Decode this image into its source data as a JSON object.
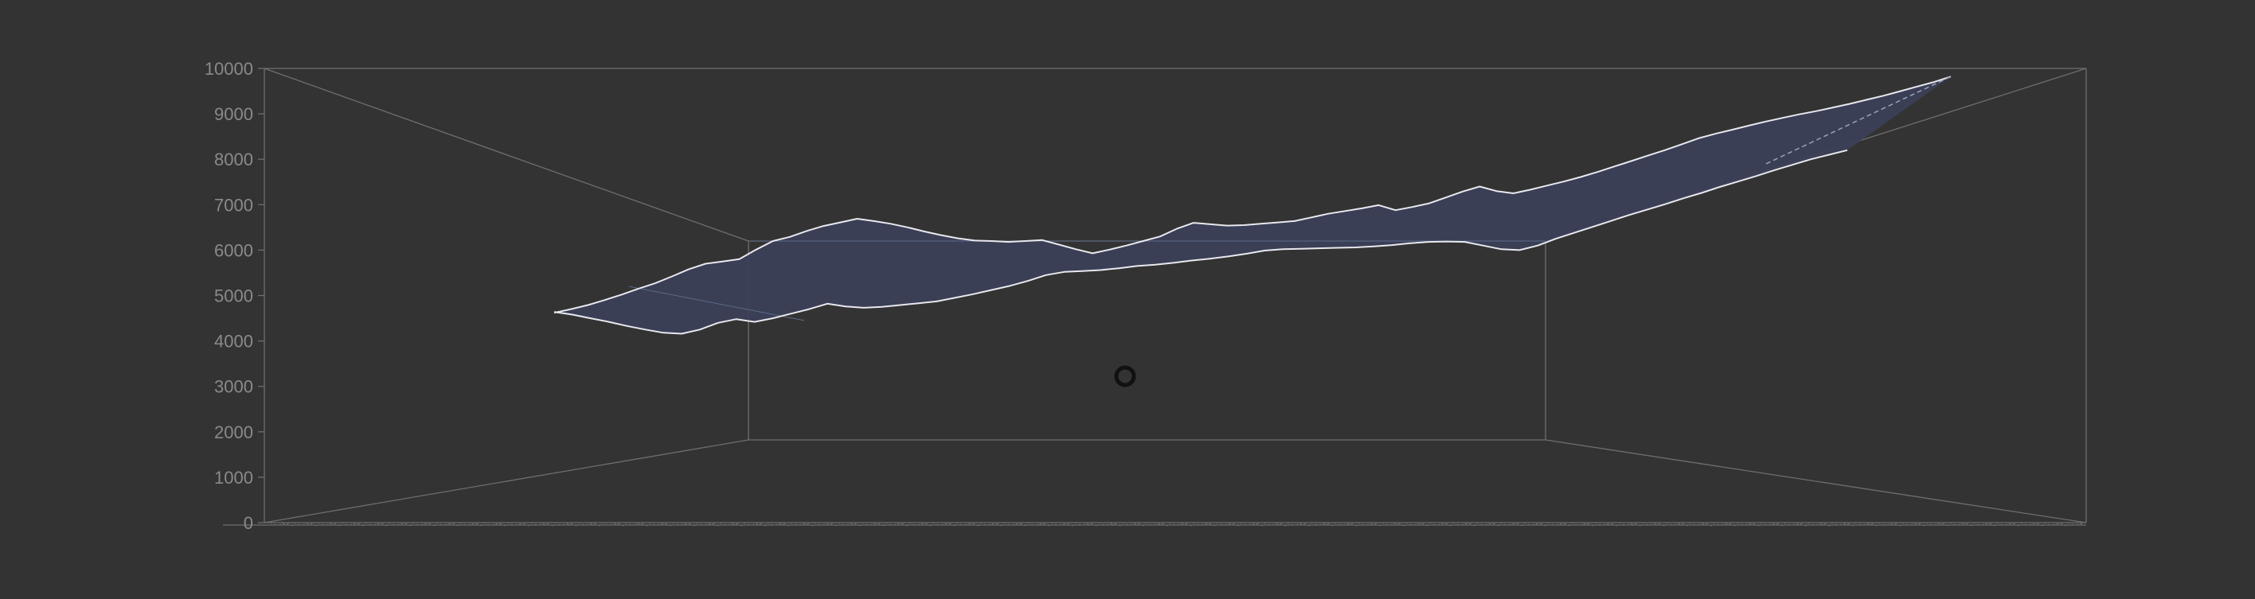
{
  "chart_data": {
    "type": "area",
    "title": "",
    "xlabel": "",
    "ylabel": "",
    "ylim": [
      0,
      10000
    ],
    "y_ticks": [
      0,
      1000,
      2000,
      3000,
      4000,
      5000,
      6000,
      7000,
      8000,
      9000,
      10000
    ],
    "grid": false,
    "legend": "none",
    "surface_color": "#3b4058",
    "edge_color": "#e8e8ee",
    "series": [
      {
        "values": [
          4620,
          4700,
          4790,
          4900,
          5020,
          5150,
          5270,
          5420,
          5580,
          5700,
          5750,
          5800,
          6010,
          6200,
          6290,
          6420,
          6530,
          6610,
          6690,
          6640,
          6580,
          6500,
          6410,
          6330,
          6260,
          6210,
          6200,
          6180,
          6200,
          6220,
          6120,
          6020,
          5930,
          6010,
          6100,
          6200,
          6300,
          6470,
          6600,
          6570,
          6540,
          6550,
          6580,
          6610,
          6640,
          6720,
          6800,
          6860,
          6920,
          6990,
          6880,
          6950,
          7030,
          7160,
          7290,
          7400,
          7300,
          7250,
          7330,
          7420,
          7510,
          7610,
          7720,
          7840,
          7960,
          8080,
          8200,
          8330,
          8460,
          8560,
          8650,
          8740,
          8830,
          8910,
          8990,
          9060,
          9140,
          9220,
          9310,
          9400,
          9500,
          9600,
          9700,
          9820
        ]
      },
      {
        "values": [
          4640,
          4580,
          4500,
          4420,
          4330,
          4250,
          4180,
          4160,
          4250,
          4400,
          4480,
          4420,
          4500,
          4600,
          4700,
          4820,
          4760,
          4730,
          4750,
          4790,
          4830,
          4870,
          4950,
          5030,
          5120,
          5210,
          5320,
          5450,
          5520,
          5540,
          5560,
          5600,
          5650,
          5680,
          5720,
          5770,
          5810,
          5860,
          5920,
          5990,
          6020,
          6030,
          6040,
          6050,
          6060,
          6080,
          6110,
          6150,
          6180,
          6190,
          6180,
          6100,
          6020,
          6000,
          6100,
          6250,
          6380,
          6510,
          6640,
          6770,
          6890,
          7010,
          7140,
          7260,
          7390,
          7510,
          7630,
          7760,
          7880,
          8000,
          8100,
          8200
        ]
      }
    ]
  }
}
